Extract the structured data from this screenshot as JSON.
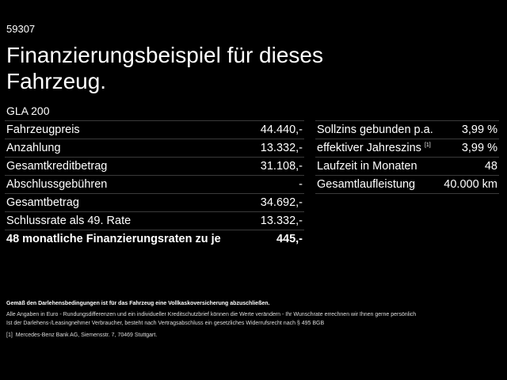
{
  "code": "59307",
  "title": "Finanzierungsbeispiel für dieses Fahrzeug.",
  "model": "GLA 200",
  "left_rows": [
    {
      "label": "Fahrzeugpreis",
      "value": "44.440,-"
    },
    {
      "label": "Anzahlung",
      "value": "13.332,-"
    },
    {
      "label": "Gesamtkreditbetrag",
      "value": "31.108,-"
    },
    {
      "label": "Abschlussgebühren",
      "value": "-"
    },
    {
      "label": "Gesamtbetrag",
      "value": "34.692,-"
    },
    {
      "label": "Schlussrate als 49. Rate",
      "value": "13.332,-"
    },
    {
      "label": "48 monatliche Finanzierungsraten zu je",
      "value": "445,-"
    }
  ],
  "right_rows": [
    {
      "label": "Sollzins gebunden p.a.",
      "value": "3,99 %"
    },
    {
      "label": "effektiver Jahreszins",
      "sup": "[1]",
      "value": "3,99 %"
    },
    {
      "label": "Laufzeit in Monaten",
      "value": "48"
    },
    {
      "label": "Gesamtlaufleistung",
      "value": "40.000 km"
    }
  ],
  "footnotes": {
    "insurance": "Gemäß den Darlehensbedingungen ist für das Fahrzeug eine Vollkaskoversicherung abzuschließen.",
    "info1": "Alle Angaben in Euro - Rundungsdifferenzen und ein individueller Kreditschutzbrief können die Werte verändern - Ihr Wunschrate errechnen wir Ihnen gerne persönlich",
    "info2": "Ist der Darlehens-/Leasingnehmer Verbraucher, besteht nach Vertragsabschluss ein gesetzliches Widerrufsrecht nach § 495 BGB",
    "ref_marker": "[1]",
    "ref_text": "Mercedes-Benz Bank AG, Siemensstr. 7, 70469 Stuttgart."
  }
}
